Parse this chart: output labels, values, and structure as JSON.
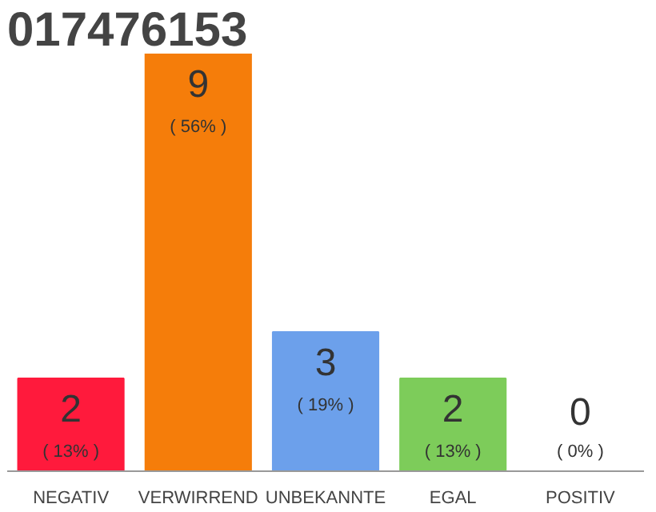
{
  "chart_data": {
    "type": "bar",
    "title": "017476153",
    "categories": [
      "NEGATIV",
      "VERWIRREND",
      "UNBEKANNTE",
      "EGAL",
      "POSITIV"
    ],
    "values": [
      2,
      9,
      3,
      2,
      0
    ],
    "value_labels": [
      "2",
      "9",
      "3",
      "2",
      "0"
    ],
    "annotations": [
      "( 13% )",
      "( 56% )",
      "( 19% )",
      "( 13% )",
      "( 0% )"
    ],
    "colors": [
      "#ff1a3c",
      "#f57d0a",
      "#6ca0eb",
      "#7dcc5a",
      "#bbbbbb"
    ],
    "grid": false
  }
}
